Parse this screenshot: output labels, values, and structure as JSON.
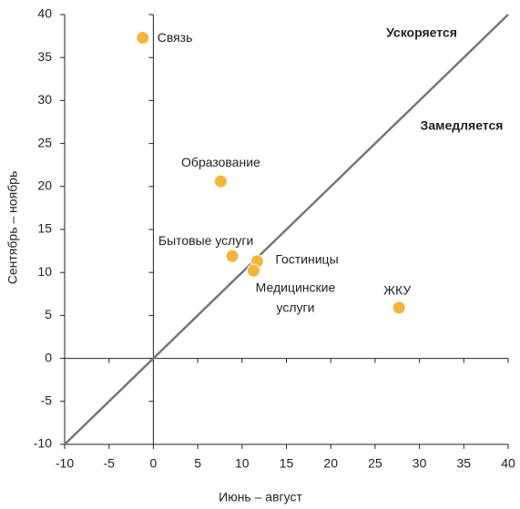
{
  "chart_data": {
    "type": "scatter",
    "x_label": "Июнь – август",
    "y_label": "Сентябрь – ноябрь",
    "annotations": [
      "Ускоряется",
      "Замедляется"
    ],
    "color": "#f7b538",
    "line_color": "#777777",
    "points": [
      {
        "label": "Связь",
        "x": -1.2,
        "y": 37.3
      },
      {
        "label": "Образование",
        "x": 7.6,
        "y": 20.6
      },
      {
        "label": "Бытовые услуги",
        "x": 8.9,
        "y": 11.9
      },
      {
        "label": "Гостиницы",
        "x": 11.7,
        "y": 11.3
      },
      {
        "label": "Медицинские услуги",
        "x": 11.3,
        "y": 10.2
      },
      {
        "label": "ЖКУ",
        "x": 27.7,
        "y": 5.9
      }
    ],
    "xlim": [
      -10,
      40
    ],
    "ylim": [
      -10,
      40
    ],
    "xticks": [
      -10,
      -5,
      0,
      5,
      10,
      15,
      20,
      25,
      30,
      35,
      40
    ],
    "yticks": [
      -10,
      -5,
      0,
      5,
      10,
      15,
      20,
      25,
      30,
      35,
      40
    ]
  }
}
